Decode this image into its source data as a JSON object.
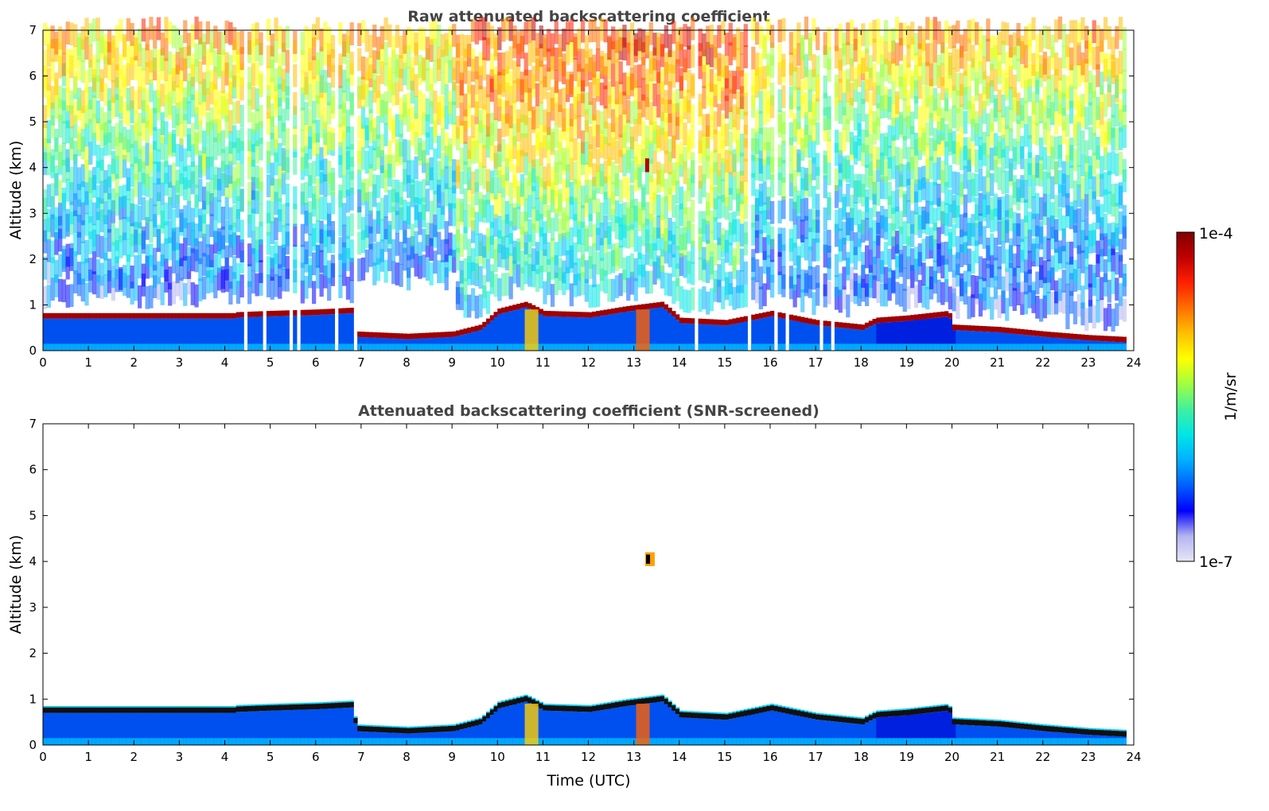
{
  "chart_data": [
    {
      "type": "heatmap",
      "title": "Raw attenuated backscattering coefficient",
      "xlabel": "",
      "ylabel": "Altitude (km)",
      "xlim": [
        0,
        24
      ],
      "ylim": [
        0,
        7
      ],
      "xticks": [
        "0",
        "1",
        "2",
        "3",
        "4",
        "5",
        "6",
        "7",
        "8",
        "9",
        "10",
        "11",
        "12",
        "13",
        "14",
        "15",
        "16",
        "17",
        "18",
        "19",
        "20",
        "21",
        "22",
        "23",
        "24"
      ],
      "yticks": [
        "0",
        "1",
        "2",
        "3",
        "4",
        "5",
        "6",
        "7"
      ],
      "grid": false,
      "screened": false,
      "layer_top_km": [
        [
          4.2,
          0.72
        ],
        [
          5.0,
          0.75
        ],
        [
          6.0,
          0.78
        ],
        [
          6.8,
          0.82
        ],
        [
          6.85,
          0.3
        ],
        [
          8.0,
          0.25
        ],
        [
          9.0,
          0.3
        ],
        [
          9.6,
          0.45
        ],
        [
          10.0,
          0.8
        ],
        [
          10.6,
          0.95
        ],
        [
          11.0,
          0.75
        ],
        [
          12.0,
          0.72
        ],
        [
          12.8,
          0.85
        ],
        [
          13.6,
          0.95
        ],
        [
          14.0,
          0.6
        ],
        [
          15.0,
          0.55
        ],
        [
          16.0,
          0.75
        ],
        [
          17.0,
          0.55
        ],
        [
          18.0,
          0.45
        ],
        [
          18.3,
          0.6
        ],
        [
          19.0,
          0.65
        ],
        [
          19.9,
          0.75
        ],
        [
          20.0,
          0.45
        ],
        [
          21.0,
          0.4
        ],
        [
          22.0,
          0.3
        ],
        [
          23.0,
          0.22
        ],
        [
          23.8,
          0.18
        ]
      ],
      "data_gaps_utc": [
        4.45,
        4.85,
        5.4,
        5.62,
        6.4,
        6.85,
        14.3,
        15.5,
        16.1,
        16.35,
        17.1,
        17.3
      ]
    },
    {
      "type": "heatmap",
      "title": "Attenuated backscattering coefficient (SNR-screened)",
      "xlabel": "Time (UTC)",
      "ylabel": "Altitude (km)",
      "xlim": [
        0,
        24
      ],
      "ylim": [
        0,
        7
      ],
      "xticks": [
        "0",
        "1",
        "2",
        "3",
        "4",
        "5",
        "6",
        "7",
        "8",
        "9",
        "10",
        "11",
        "12",
        "13",
        "14",
        "15",
        "16",
        "17",
        "18",
        "19",
        "20",
        "21",
        "22",
        "23",
        "24"
      ],
      "yticks": [
        "0",
        "1",
        "2",
        "3",
        "4",
        "5",
        "6",
        "7"
      ],
      "grid": false,
      "screened": true,
      "elevated_feature": {
        "time_utc": 13.3,
        "altitude_km": 4.05
      }
    }
  ],
  "colorbar": {
    "label": "1/m/sr",
    "max_label": "1e-4",
    "min_label": "1e-7",
    "scale": "log",
    "colors": [
      "#e6e6f8",
      "#b4b4f0",
      "#0000ff",
      "#0060ff",
      "#00b0ff",
      "#00e6e6",
      "#40f0a0",
      "#a0ff40",
      "#ffff00",
      "#ffc000",
      "#ff7000",
      "#ff2000",
      "#c00000",
      "#800000"
    ]
  }
}
